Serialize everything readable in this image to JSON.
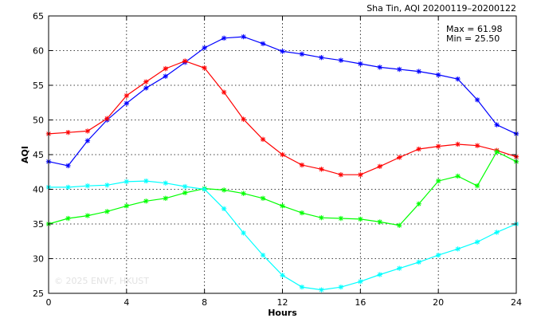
{
  "chart_data": {
    "type": "line",
    "title": "Sha Tin, AQI 20200119–20200122",
    "xlabel": "Hours",
    "ylabel": "AQI",
    "xlim": [
      0,
      24
    ],
    "ylim": [
      25,
      65
    ],
    "x_ticks": [
      0,
      4,
      8,
      12,
      16,
      20,
      24
    ],
    "y_ticks": [
      25,
      30,
      35,
      40,
      45,
      50,
      55,
      60,
      65
    ],
    "grid": true,
    "stats": {
      "max": "Max = 61.98",
      "min": "Min = 25.50"
    },
    "watermark": "© 2025  ENVF, HKUST",
    "series": [
      {
        "color": "#0000ff",
        "marker": "asterisk",
        "x": [
          0,
          1,
          2,
          3,
          4,
          5,
          6,
          7,
          8,
          9,
          10,
          11,
          12,
          13,
          14,
          15,
          16,
          17,
          18,
          19,
          20,
          21,
          22,
          23,
          24
        ],
        "values": [
          44.0,
          43.4,
          47.0,
          50.0,
          52.4,
          54.6,
          56.3,
          58.3,
          60.4,
          61.8,
          62.0,
          61.0,
          59.9,
          59.5,
          59.0,
          58.6,
          58.1,
          57.6,
          57.3,
          57.0,
          56.5,
          55.9,
          52.9,
          49.3,
          48.0
        ]
      },
      {
        "color": "#ff0000",
        "marker": "asterisk",
        "x": [
          0,
          1,
          2,
          3,
          4,
          5,
          6,
          7,
          8,
          9,
          10,
          11,
          12,
          13,
          14,
          15,
          16,
          17,
          18,
          19,
          20,
          21,
          22,
          23,
          24
        ],
        "values": [
          48.0,
          48.2,
          48.4,
          50.2,
          53.5,
          55.5,
          57.4,
          58.5,
          57.5,
          54.0,
          50.1,
          47.2,
          45.0,
          43.5,
          42.9,
          42.1,
          42.1,
          43.3,
          44.6,
          45.8,
          46.2,
          46.5,
          46.3,
          45.6,
          44.7
        ]
      },
      {
        "color": "#00ff00",
        "marker": "asterisk",
        "x": [
          0,
          1,
          2,
          3,
          4,
          5,
          6,
          7,
          8,
          9,
          10,
          11,
          12,
          13,
          14,
          15,
          16,
          17,
          18,
          19,
          20,
          21,
          22,
          23,
          24
        ],
        "values": [
          35.0,
          35.8,
          36.2,
          36.8,
          37.6,
          38.3,
          38.7,
          39.5,
          40.1,
          39.9,
          39.4,
          38.7,
          37.6,
          36.6,
          35.9,
          35.8,
          35.7,
          35.3,
          34.8,
          37.9,
          41.2,
          41.9,
          40.5,
          45.4,
          44.0
        ]
      },
      {
        "color": "#00ffff",
        "marker": "asterisk",
        "x": [
          0,
          1,
          2,
          3,
          4,
          5,
          6,
          7,
          8,
          9,
          10,
          11,
          12,
          13,
          14,
          15,
          16,
          17,
          18,
          19,
          20,
          21,
          22,
          23,
          24
        ],
        "values": [
          40.3,
          40.3,
          40.5,
          40.6,
          41.1,
          41.2,
          40.9,
          40.4,
          40.0,
          37.2,
          33.7,
          30.5,
          27.6,
          25.9,
          25.5,
          25.9,
          26.7,
          27.7,
          28.6,
          29.5,
          30.5,
          31.4,
          32.4,
          33.8,
          35.0
        ]
      }
    ]
  }
}
